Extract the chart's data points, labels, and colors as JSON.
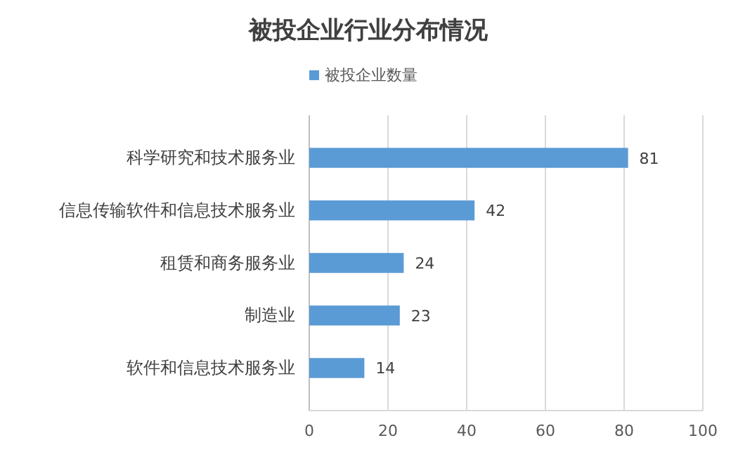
{
  "chart_data": {
    "type": "bar",
    "orientation": "horizontal",
    "title": "被投企业行业分布情况",
    "categories": [
      "科学研究和技术服务业",
      "信息传输软件和信息技术服务业",
      "租赁和商务服务业",
      "制造业",
      "软件和信息技术服务业"
    ],
    "series": [
      {
        "name": "被投企业数量",
        "color": "#5b9bd5",
        "values": [
          81,
          42,
          24,
          23,
          14
        ]
      }
    ],
    "xlim": [
      0,
      100
    ],
    "xticks": [
      0,
      20,
      40,
      60,
      80,
      100
    ],
    "grid": "x",
    "legend": "top",
    "data_labels": true
  }
}
